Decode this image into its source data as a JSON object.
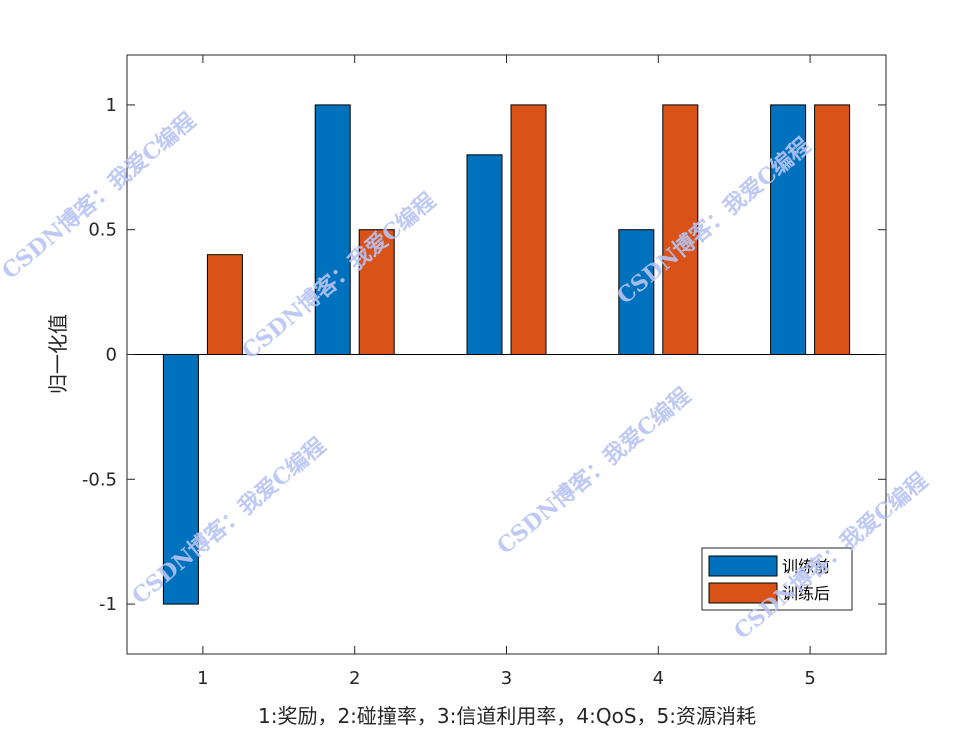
{
  "chart_data": {
    "type": "bar",
    "categories": [
      "1",
      "2",
      "3",
      "4",
      "5"
    ],
    "series": [
      {
        "name": "训练前",
        "values": [
          -1,
          1,
          0.8,
          0.5,
          1
        ],
        "color": "#0072BD"
      },
      {
        "name": "训练后",
        "values": [
          0.4,
          0.5,
          1,
          1,
          1
        ],
        "color": "#D95319"
      }
    ],
    "xlabel": "1:奖励，2:碰撞率，3:信道利用率，4:QoS，5:资源消耗",
    "ylabel": "归一化值",
    "ylim": [
      -1.2,
      1.2
    ],
    "yticks": [
      "-1",
      "-0.5",
      "0",
      "0.5",
      "1"
    ],
    "grid": false,
    "legend_position": "bottom-right"
  },
  "watermark": "CSDN博客：我爱C编程"
}
